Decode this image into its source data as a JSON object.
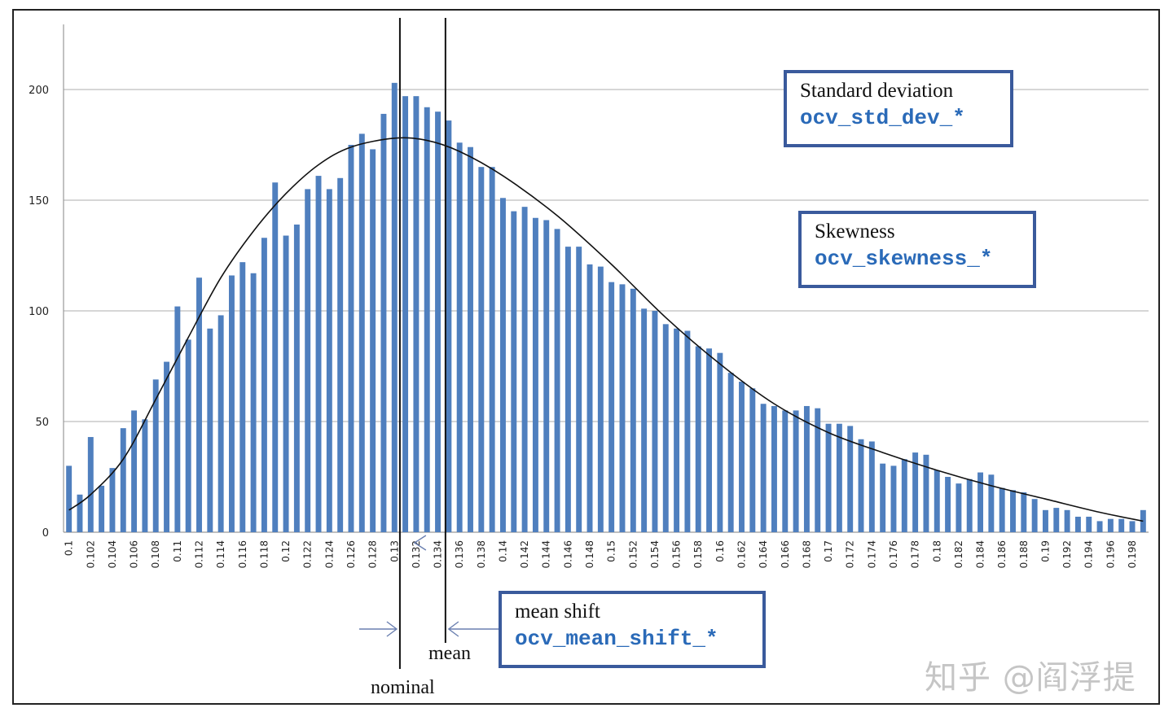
{
  "chart_data": {
    "type": "bar",
    "title": "",
    "xlabel": "",
    "ylabel": "",
    "ylim": [
      0,
      230
    ],
    "y_ticks": [
      0,
      50,
      100,
      150,
      200
    ],
    "x_start": 0.1,
    "x_step": 0.001,
    "x_tick_labels": [
      "0.1",
      "0.102",
      "0.104",
      "0.106",
      "0.108",
      "0.11",
      "0.112",
      "0.114",
      "0.116",
      "0.118",
      "0.12",
      "0.122",
      "0.124",
      "0.126",
      "0.128",
      "0.13",
      "0.132",
      "0.134",
      "0.136",
      "0.138",
      "0.14",
      "0.142",
      "0.144",
      "0.146",
      "0.148",
      "0.15",
      "0.152",
      "0.154",
      "0.156",
      "0.158",
      "0.16",
      "0.162",
      "0.164",
      "0.166",
      "0.168",
      "0.17",
      "0.172",
      "0.174",
      "0.176",
      "0.178",
      "0.18",
      "0.182",
      "0.184",
      "0.186",
      "0.188",
      "0.19",
      "0.192",
      "0.194",
      "0.196",
      "0.198"
    ],
    "values": [
      30,
      17,
      43,
      21,
      29,
      47,
      55,
      51,
      69,
      77,
      102,
      87,
      115,
      92,
      98,
      116,
      122,
      117,
      133,
      158,
      134,
      139,
      155,
      161,
      155,
      160,
      175,
      180,
      173,
      189,
      203,
      197,
      197,
      192,
      190,
      186,
      176,
      174,
      165,
      165,
      151,
      145,
      147,
      142,
      141,
      137,
      129,
      129,
      121,
      120,
      113,
      112,
      110,
      101,
      100,
      94,
      92,
      91,
      84,
      83,
      81,
      72,
      68,
      65,
      58,
      57,
      55,
      55,
      57,
      56,
      49,
      49,
      48,
      42,
      41,
      31,
      30,
      33,
      36,
      35,
      28,
      25,
      22,
      24,
      27,
      26,
      20,
      19,
      18,
      15,
      10,
      11,
      10,
      7,
      7,
      5,
      6,
      6,
      5,
      10
    ],
    "curve": {
      "name": "fitted distribution",
      "points": [
        [
          0.1,
          10
        ],
        [
          0.102,
          17
        ],
        [
          0.105,
          33
        ],
        [
          0.108,
          60
        ],
        [
          0.111,
          88
        ],
        [
          0.114,
          115
        ],
        [
          0.117,
          136
        ],
        [
          0.12,
          153
        ],
        [
          0.123,
          166
        ],
        [
          0.126,
          174
        ],
        [
          0.13,
          178
        ],
        [
          0.133,
          177
        ],
        [
          0.136,
          172
        ],
        [
          0.14,
          161
        ],
        [
          0.145,
          143
        ],
        [
          0.15,
          121
        ],
        [
          0.155,
          97
        ],
        [
          0.16,
          76
        ],
        [
          0.165,
          58
        ],
        [
          0.17,
          45
        ],
        [
          0.175,
          36
        ],
        [
          0.18,
          28
        ],
        [
          0.185,
          21
        ],
        [
          0.19,
          15
        ],
        [
          0.195,
          9
        ],
        [
          0.199,
          5
        ]
      ]
    },
    "markers": [
      {
        "name": "nominal",
        "x": 0.1305
      },
      {
        "name": "mean",
        "x": 0.1347
      }
    ],
    "colors": {
      "bar": "#4f7fbe",
      "curve": "#111111",
      "grid": "#c8c8c8",
      "box_border": "#3a5a9c",
      "code_text": "#2a6ab8"
    }
  },
  "annotations": {
    "std_dev": {
      "title": "Standard deviation",
      "code": "ocv_std_dev_*"
    },
    "skewness": {
      "title": "Skewness",
      "code": "ocv_skewness_*"
    },
    "mean_shift": {
      "title": "mean shift",
      "code": "ocv_mean_shift_*"
    }
  },
  "labels": {
    "mean": "mean",
    "nominal": "nominal"
  },
  "watermark": "知乎 @阎浮提"
}
